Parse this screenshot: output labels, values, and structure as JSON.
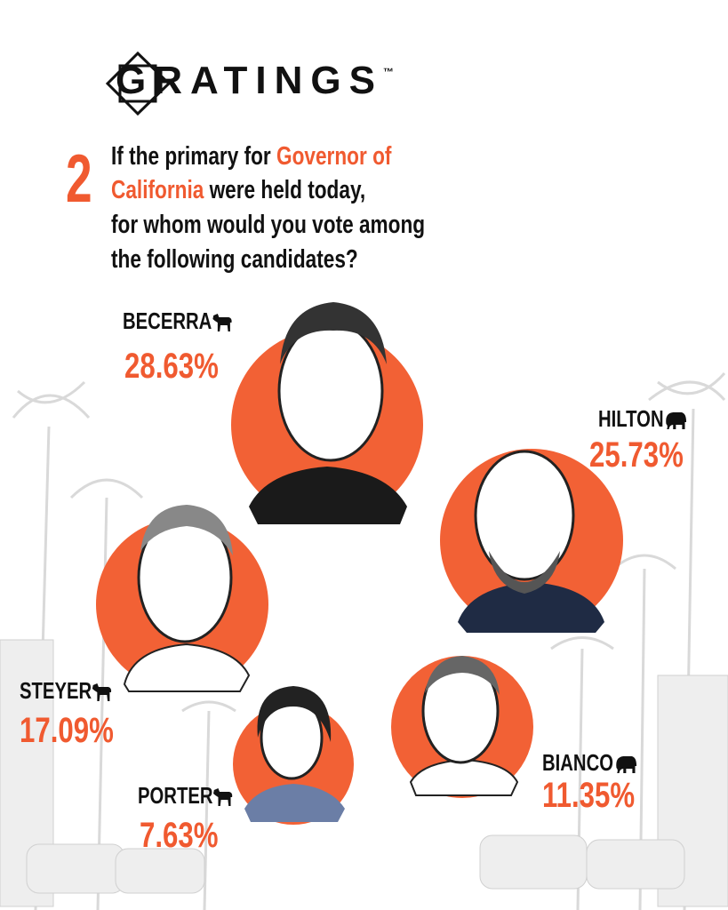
{
  "logo": {
    "text": "GRATINGS",
    "mark": "™"
  },
  "question": {
    "number": "2",
    "lines": [
      [
        "If the primary for",
        "Governor of"
      ],
      [
        "California",
        "were held today,"
      ],
      [
        "for whom would you vote among"
      ],
      [
        "the following candidates?"
      ]
    ]
  },
  "candidates": [
    {
      "name": "BECERRA",
      "result": "28.63%"
    },
    {
      "name": "HILTON",
      "result": "25.73%"
    },
    {
      "name": "STEYER",
      "result": "17.09%"
    },
    {
      "name": "PORTER",
      "result": "7.63%"
    },
    {
      "name": "BIANCO",
      "result": "11.35%"
    }
  ]
}
